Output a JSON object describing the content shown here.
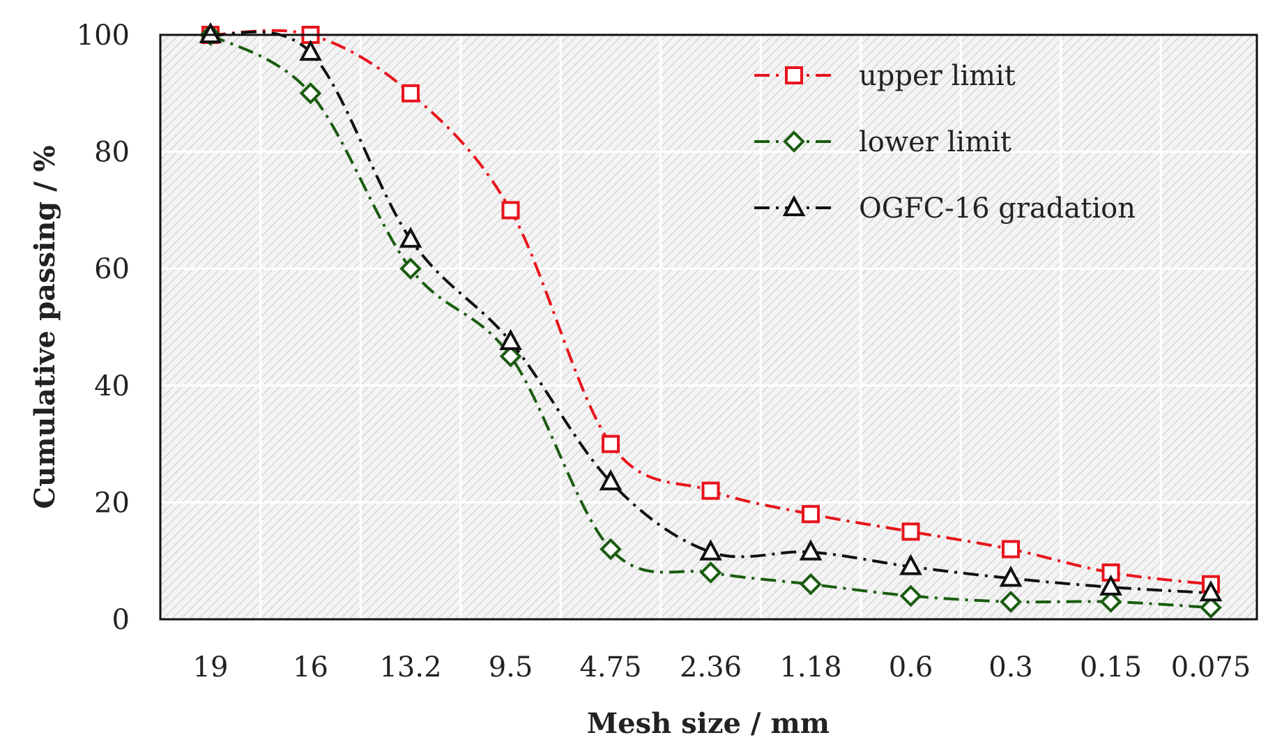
{
  "chart_data": {
    "type": "line",
    "title": "",
    "xlabel": "Mesh size / mm",
    "ylabel": "Cumulative passing / %",
    "categories": [
      "19",
      "16",
      "13.2",
      "9.5",
      "4.75",
      "2.36",
      "1.18",
      "0.6",
      "0.3",
      "0.15",
      "0.075"
    ],
    "ylim": [
      0,
      100
    ],
    "yticks": [
      "0",
      "20",
      "40",
      "60",
      "80",
      "100"
    ],
    "grid": true,
    "legend_position": "top-right",
    "series": [
      {
        "name": "upper limit",
        "values": [
          100,
          100,
          90,
          70,
          30,
          22,
          18,
          15,
          12,
          8,
          6
        ],
        "color": "#e8141c",
        "marker": "square",
        "dash": "dashdot"
      },
      {
        "name": "lower limit",
        "values": [
          100,
          90,
          60,
          45,
          12,
          8,
          6,
          4,
          3,
          3,
          2
        ],
        "color": "#1a5c10",
        "marker": "diamond",
        "dash": "dashdot"
      },
      {
        "name": "OGFC-16 gradation",
        "values": [
          100,
          97,
          65,
          47.5,
          23.5,
          11.5,
          11.5,
          9,
          7,
          5.5,
          4.5
        ],
        "color": "#111111",
        "marker": "triangle",
        "dash": "dashdot"
      }
    ]
  }
}
